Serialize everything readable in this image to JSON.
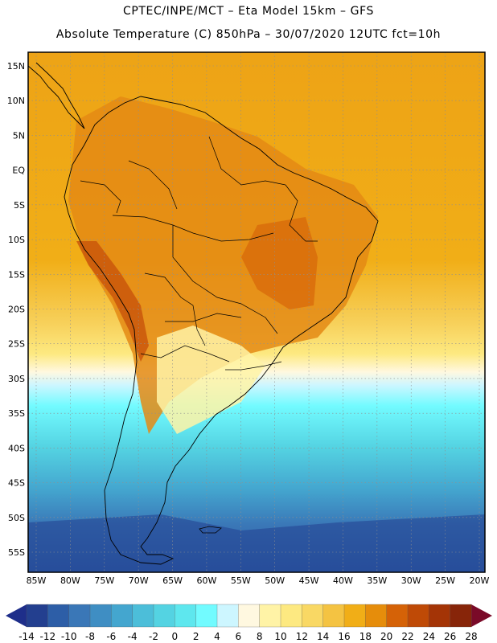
{
  "header": {
    "line1": "CPTEC/INPE/MCT –  Eta Model 15km – GFS",
    "line2": "Absolute Temperature (C) 850hPa – 30/07/2020 12UTC fct=10h"
  },
  "map": {
    "lat_labels": [
      "15N",
      "10N",
      "5N",
      "EQ",
      "5S",
      "10S",
      "15S",
      "20S",
      "25S",
      "30S",
      "35S",
      "40S",
      "45S",
      "50S",
      "55S"
    ],
    "lon_labels": [
      "85W",
      "80W",
      "75W",
      "70W",
      "65W",
      "60W",
      "55W",
      "50W",
      "45W",
      "40W",
      "35W",
      "30W",
      "25W",
      "20W"
    ]
  },
  "colorbar": {
    "ticks": [
      "-14",
      "-12",
      "-10",
      "-8",
      "-6",
      "-4",
      "-2",
      "0",
      "2",
      "4",
      "6",
      "8",
      "10",
      "12",
      "14",
      "16",
      "18",
      "20",
      "22",
      "24",
      "26",
      "28"
    ],
    "colors": [
      "#233f8f",
      "#2d5ea7",
      "#3a77b7",
      "#3f8ec3",
      "#44a6cf",
      "#4cbed9",
      "#54d3e2",
      "#5ee7ee",
      "#72fbff",
      "#cdf6ff",
      "#fff8e0",
      "#fff3a6",
      "#fde981",
      "#f9d864",
      "#f4c342",
      "#f1ae17",
      "#e68d0b",
      "#d56207",
      "#bf4a06",
      "#a43406",
      "#872509"
    ],
    "left_cap": "#1e2e8a",
    "right_cap": "#7a0a28"
  }
}
